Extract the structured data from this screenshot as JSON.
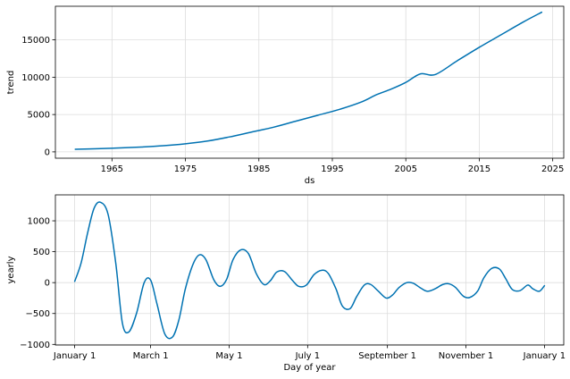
{
  "chart_data": [
    {
      "type": "line",
      "xlabel": "ds",
      "ylabel": "trend",
      "xlim": [
        1957.3,
        2026.5
      ],
      "ylim": [
        -850,
        19500
      ],
      "grid": true,
      "color": "#0072B2",
      "xticks": [
        1965,
        1975,
        1985,
        1995,
        2005,
        2015,
        2025
      ],
      "xtick_labels": [
        "1965",
        "1975",
        "1985",
        "1995",
        "2005",
        "2015",
        "2025"
      ],
      "yticks": [
        0,
        5000,
        10000,
        15000
      ],
      "ytick_labels": [
        "0",
        "5000",
        "10000",
        "15000"
      ],
      "series": [
        {
          "x": [
            1960,
            1963,
            1966,
            1969,
            1972,
            1975,
            1978,
            1981,
            1984,
            1987,
            1990,
            1993,
            1996,
            1999,
            2001,
            2003,
            2005,
            2007,
            2009,
            2012,
            2015,
            2018,
            2021,
            2023.5
          ],
          "values": [
            350,
            420,
            520,
            650,
            820,
            1080,
            1450,
            2000,
            2650,
            3300,
            4100,
            4900,
            5700,
            6700,
            7650,
            8400,
            9300,
            10450,
            10350,
            12200,
            14000,
            15700,
            17400,
            18700
          ]
        }
      ]
    },
    {
      "type": "line",
      "xlabel": "Day of year",
      "ylabel": "yearly",
      "xlim": [
        -15,
        380
      ],
      "ylim": [
        -1010,
        1420
      ],
      "grid": true,
      "color": "#0072B2",
      "xticks": [
        0,
        59,
        120,
        181,
        243,
        304,
        365
      ],
      "xtick_labels": [
        "January 1",
        "March 1",
        "May 1",
        "July 1",
        "September 1",
        "November 1",
        "January 1"
      ],
      "yticks": [
        -1000,
        -500,
        0,
        500,
        1000
      ],
      "ytick_labels": [
        "−1000",
        "−500",
        "0",
        "500",
        "1000"
      ],
      "series": [
        {
          "x": [
            0,
            5,
            10,
            15,
            20,
            26,
            32,
            37,
            42,
            48,
            54,
            59,
            64,
            70,
            76,
            81,
            86,
            92,
            97,
            102,
            108,
            113,
            118,
            123,
            129,
            135,
            141,
            147,
            152,
            157,
            163,
            169,
            174,
            180,
            186,
            192,
            197,
            203,
            208,
            214,
            219,
            225,
            230,
            236,
            242,
            247,
            252,
            258,
            263,
            269,
            274,
            280,
            286,
            291,
            296,
            302,
            307,
            313,
            318,
            324,
            330,
            335,
            340,
            346,
            352,
            356,
            361,
            365
          ],
          "values": [
            20,
            320,
            800,
            1200,
            1300,
            1100,
            300,
            -650,
            -800,
            -500,
            0,
            40,
            -350,
            -830,
            -880,
            -600,
            -100,
            300,
            450,
            370,
            50,
            -60,
            50,
            370,
            530,
            470,
            150,
            -30,
            30,
            170,
            180,
            40,
            -60,
            -40,
            130,
            200,
            150,
            -100,
            -380,
            -420,
            -230,
            -40,
            -30,
            -140,
            -250,
            -200,
            -80,
            0,
            -10,
            -90,
            -140,
            -100,
            -30,
            -20,
            -80,
            -220,
            -240,
            -140,
            80,
            230,
            220,
            60,
            -110,
            -130,
            -40,
            -100,
            -140,
            -50
          ]
        }
      ]
    }
  ]
}
